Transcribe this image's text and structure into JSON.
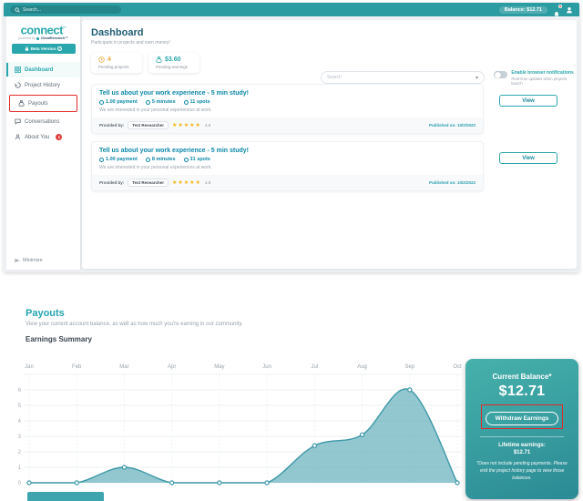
{
  "header": {
    "search_placeholder": "Search...",
    "balance_label": "Balance: $12.71"
  },
  "sidebar": {
    "logo": "connect",
    "logo_tm": "™",
    "powered_by": "powered by",
    "brand": "CloudResearch™",
    "beta_badge": "Beta Version",
    "items": [
      {
        "label": "Dashboard"
      },
      {
        "label": "Project History"
      },
      {
        "label": "Payouts"
      },
      {
        "label": "Conversations"
      },
      {
        "label": "About You",
        "badge": "1"
      }
    ],
    "minimize_label": "Minimize"
  },
  "dashboard": {
    "title": "Dashboard",
    "subtitle": "Participate in projects and earn money!",
    "stats": [
      {
        "value": "4",
        "label": "Pending projects"
      },
      {
        "value": "$3.60",
        "label": "Pending earnings"
      }
    ],
    "search_placeholder": "Search",
    "notifications_toggle": {
      "label": "Enable browser notifications",
      "sublabel": "Real-time updates when projects launch"
    },
    "projects": [
      {
        "title": "Tell us about your work experience - 5 min study!",
        "payment": "1.00 payment",
        "minutes": "5 minutes",
        "spots": "11 spots",
        "description": "We are interested in your personal experiences at work.",
        "provided_by_label": "Provided by:",
        "provider": "Text Researcher",
        "rating_stars": "★★★★★",
        "rating": "4.9",
        "published_label": "Published on:",
        "published_date": "10/2/2022",
        "view_label": "View"
      },
      {
        "title": "Tell us about your work experience - 5 min study!",
        "payment": "1.00 payment",
        "minutes": "8 minutes",
        "spots": "31 spots",
        "description": "We are interested in your personal experiences at work.",
        "provided_by_label": "Provided by:",
        "provider": "Text Researcher",
        "rating_stars": "★★★★★",
        "rating": "4.8",
        "published_label": "Published on:",
        "published_date": "10/2/2022",
        "view_label": "View"
      }
    ]
  },
  "payouts": {
    "title": "Payouts",
    "subtitle": "View your current account balance, as well as how much you're earning in our community.",
    "section_title": "Earnings Summary",
    "balance_card": {
      "title": "Current Balance*",
      "amount": "$12.71",
      "button_label": "Withdraw Earnings",
      "lifetime_label": "Lifetime earnings:",
      "lifetime_amount": "$12.71",
      "footnote": "*Does not include pending payments. Please visit the project history page to view those balances."
    }
  },
  "chart_data": {
    "type": "area",
    "title": "Earnings Summary",
    "x": [
      "Jan",
      "Feb",
      "Mar",
      "Apr",
      "May",
      "Jun",
      "Jul",
      "Aug",
      "Sep",
      "Oct"
    ],
    "values": [
      0,
      0,
      1,
      0,
      0,
      0,
      2.4,
      3.1,
      6,
      0
    ],
    "xlabel": "",
    "ylabel": "",
    "ylim": [
      0,
      6
    ],
    "yticks": [
      0,
      1,
      2,
      3,
      4,
      5,
      6
    ],
    "grid": true,
    "x_label_position": "top",
    "legend": false,
    "line_color": "#3e98a8",
    "fill_color": "rgba(104,178,190,0.72)",
    "marker": "circle-open"
  },
  "colors": {
    "accent": "#2aa7ac",
    "header_teal": "#2b9ca1",
    "annotation_red": "#e02b2b",
    "star_gold": "#f5b50f",
    "pending_orange": "#eda93b",
    "title_dark": "#215e75",
    "link_teal": "#0c87a8",
    "card_gradient_top": "#46b1ab",
    "card_gradient_bottom": "#2b8a95"
  }
}
